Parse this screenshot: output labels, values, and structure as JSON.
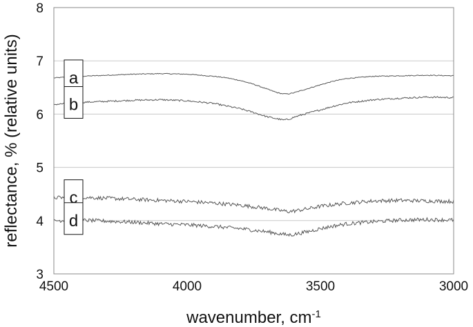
{
  "chart_data": {
    "type": "line",
    "title": "",
    "xlabel": "wavenumber, cm",
    "xlabel_superscript": "-1",
    "ylabel": "reflectance, % (relative units)",
    "xlim": [
      4500,
      3000
    ],
    "ylim": [
      3,
      8
    ],
    "x_axis_reversed": true,
    "grid": "horizontal",
    "x_ticks": [
      4500,
      4000,
      3500,
      3000
    ],
    "y_ticks": [
      3,
      4,
      5,
      6,
      7,
      8
    ],
    "x_tick_labels": [
      "4500",
      "4000",
      "3500",
      "3000"
    ],
    "y_tick_labels": [
      "3",
      "4",
      "5",
      "6",
      "7",
      "8"
    ],
    "series": [
      {
        "name": "a",
        "noise": 0.008,
        "x": [
          4500,
          4400,
          4300,
          4200,
          4100,
          4000,
          3900,
          3850,
          3800,
          3750,
          3700,
          3660,
          3640,
          3620,
          3600,
          3560,
          3500,
          3450,
          3400,
          3300,
          3200,
          3100,
          3000
        ],
        "y": [
          6.68,
          6.71,
          6.73,
          6.75,
          6.76,
          6.75,
          6.71,
          6.68,
          6.63,
          6.56,
          6.47,
          6.4,
          6.38,
          6.38,
          6.4,
          6.46,
          6.55,
          6.62,
          6.67,
          6.71,
          6.72,
          6.73,
          6.72
        ]
      },
      {
        "name": "b",
        "noise": 0.015,
        "x": [
          4500,
          4400,
          4300,
          4200,
          4100,
          4000,
          3900,
          3850,
          3800,
          3750,
          3700,
          3660,
          3640,
          3620,
          3600,
          3560,
          3500,
          3450,
          3400,
          3300,
          3200,
          3100,
          3000
        ],
        "y": [
          6.18,
          6.22,
          6.24,
          6.26,
          6.27,
          6.25,
          6.2,
          6.15,
          6.1,
          6.03,
          5.95,
          5.91,
          5.89,
          5.9,
          5.94,
          6.0,
          6.08,
          6.15,
          6.21,
          6.27,
          6.3,
          6.32,
          6.31
        ]
      },
      {
        "name": "c",
        "noise": 0.035,
        "x": [
          4500,
          4400,
          4300,
          4200,
          4100,
          4000,
          3900,
          3800,
          3700,
          3650,
          3620,
          3600,
          3550,
          3500,
          3450,
          3400,
          3300,
          3200,
          3100,
          3000
        ],
        "y": [
          4.43,
          4.44,
          4.42,
          4.4,
          4.38,
          4.36,
          4.33,
          4.29,
          4.23,
          4.19,
          4.17,
          4.18,
          4.22,
          4.27,
          4.3,
          4.33,
          4.37,
          4.38,
          4.37,
          4.36
        ]
      },
      {
        "name": "d",
        "noise": 0.035,
        "x": [
          4500,
          4400,
          4300,
          4200,
          4100,
          4000,
          3900,
          3800,
          3700,
          3650,
          3620,
          3600,
          3550,
          3500,
          3450,
          3400,
          3300,
          3200,
          3100,
          3000
        ],
        "y": [
          4.0,
          4.01,
          3.99,
          3.97,
          3.94,
          3.92,
          3.89,
          3.85,
          3.79,
          3.75,
          3.73,
          3.74,
          3.79,
          3.85,
          3.9,
          3.94,
          3.98,
          4.01,
          4.02,
          4.01
        ]
      }
    ],
    "annotations": [
      {
        "text": "a",
        "series": "a"
      },
      {
        "text": "b",
        "series": "b"
      },
      {
        "text": "c",
        "series": "c"
      },
      {
        "text": "d",
        "series": "d"
      }
    ],
    "colors": {
      "line": "#555555",
      "grid": "#c8c8c8",
      "axis": "#888888",
      "text": "#111111"
    }
  }
}
